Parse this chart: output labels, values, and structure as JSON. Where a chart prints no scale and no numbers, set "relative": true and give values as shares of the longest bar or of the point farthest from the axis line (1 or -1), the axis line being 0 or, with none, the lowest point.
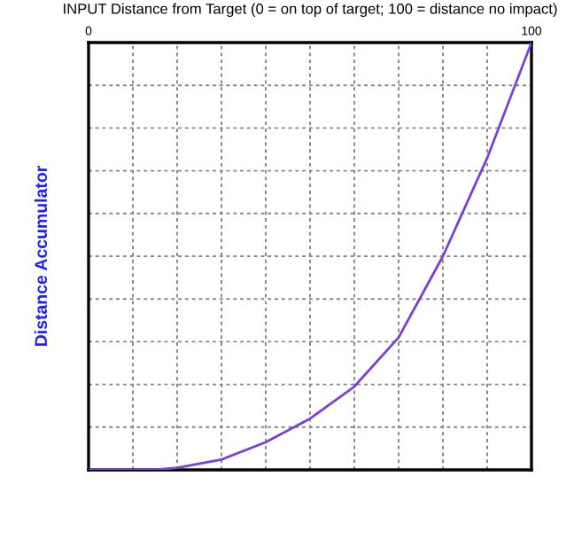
{
  "chart_data": {
    "type": "line",
    "xlabel": "INPUT Distance from Target (0 = on top of target; 100 = distance no impact)",
    "ylabel": "Distance Accumulator",
    "relative": true,
    "x": [
      0,
      10,
      15,
      20,
      30,
      40,
      50,
      60,
      70,
      80,
      90,
      100
    ],
    "series": [
      {
        "color": "#7b3fd8",
        "values": [
          0,
          0,
          0,
          0.005,
          0.024,
          0.065,
          0.12,
          0.195,
          0.31,
          0.5,
          0.73,
          1
        ]
      }
    ],
    "xlim": [
      0,
      100
    ],
    "xticks": [
      0,
      {
        "value": 10,
        "label": null
      },
      {
        "value": 20,
        "label": null
      },
      {
        "value": 30,
        "label": null
      },
      {
        "value": 40,
        "label": null
      },
      {
        "value": 50,
        "label": null
      },
      {
        "value": 60,
        "label": null
      },
      {
        "value": 70,
        "label": null
      },
      {
        "value": 80,
        "label": null
      },
      {
        "value": 90,
        "label": null
      },
      100
    ],
    "grid": true,
    "line_style": "solid",
    "marker": "none"
  }
}
